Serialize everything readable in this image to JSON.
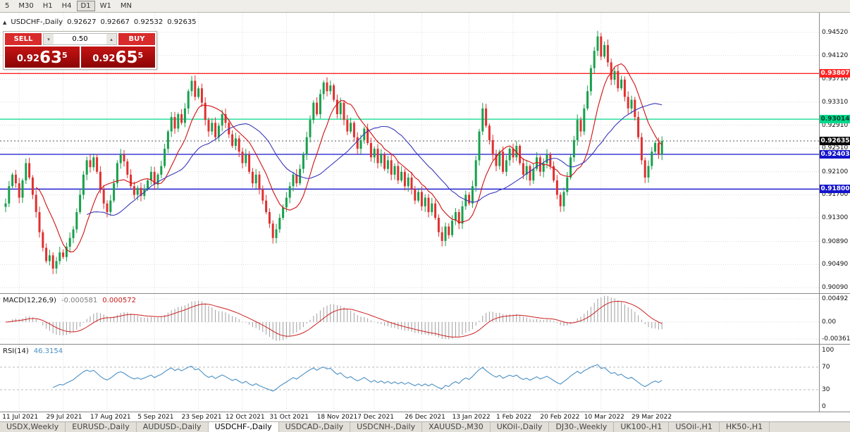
{
  "toolbar": {
    "timeframes": [
      "5",
      "M30",
      "H1",
      "H4",
      "D1",
      "W1",
      "MN"
    ],
    "active": "D1"
  },
  "chart": {
    "collapse_icon": "▲",
    "title": "USDCHF-,Daily",
    "open": "0.92627",
    "high": "0.92667",
    "low": "0.92532",
    "close": "0.92635"
  },
  "trade_panel": {
    "sell_label": "SELL",
    "buy_label": "BUY",
    "volume": "0.50",
    "spin_up_icon": "▴",
    "spin_down_icon": "▾",
    "sell_price": {
      "base": "0.92",
      "big": "63",
      "sup": "5"
    },
    "buy_price": {
      "base": "0.92",
      "big": "65",
      "sup": "5"
    }
  },
  "chart_data": {
    "type": "candlestick",
    "symbol": "USDCHF-",
    "timeframe": "Daily",
    "colors": {
      "up": "#18A04C",
      "down": "#E03030",
      "ma_fast": "#D01010",
      "ma_slow": "#3A3AB8",
      "macd_hist": "#9E9E9E",
      "macd_signal": "#CC2020",
      "rsi": "#4A90C4",
      "grid": "#DCDCDC"
    },
    "y_ticks": [
      "0.94520",
      "0.94120",
      "0.93710",
      "0.93310",
      "0.92910",
      "0.92510",
      "0.92100",
      "0.91700",
      "0.91300",
      "0.90890",
      "0.90490",
      "0.90090"
    ],
    "levels": [
      {
        "price": 0.93807,
        "label": "0.93807",
        "color": "#FF2424",
        "tag_text": "#FFFFFF"
      },
      {
        "price": 0.93014,
        "label": "0.93014",
        "color": "#00D98B",
        "tag_text": "#063A28"
      },
      {
        "price": 0.92403,
        "label": "0.92403",
        "color": "#1414CC",
        "tag_text": "#FFFFFF"
      },
      {
        "price": 0.918,
        "label": "0.91800",
        "color": "#1414CC",
        "tag_text": "#FFFFFF"
      }
    ],
    "current_price": {
      "value": 0.92635,
      "label": "0.92635",
      "bg": "#0A0A0A",
      "text": "#FFFFFF"
    },
    "x_labels": [
      {
        "i": 4,
        "text": "11 Jul 2021"
      },
      {
        "i": 17,
        "text": "29 Jul 2021"
      },
      {
        "i": 30,
        "text": "17 Aug 2021"
      },
      {
        "i": 44,
        "text": "5 Sep 2021"
      },
      {
        "i": 57,
        "text": "23 Sep 2021"
      },
      {
        "i": 70,
        "text": "12 Oct 2021"
      },
      {
        "i": 83,
        "text": "31 Oct 2021"
      },
      {
        "i": 97,
        "text": "18 Nov 2021"
      },
      {
        "i": 109,
        "text": "7 Dec 2021"
      },
      {
        "i": 123,
        "text": "26 Dec 2021"
      },
      {
        "i": 137,
        "text": "13 Jan 2022"
      },
      {
        "i": 150,
        "text": "1 Feb 2022"
      },
      {
        "i": 163,
        "text": "20 Feb 2022"
      },
      {
        "i": 176,
        "text": "10 Mar 2022"
      },
      {
        "i": 190,
        "text": "29 Mar 2022"
      }
    ],
    "closes": [
      0.9155,
      0.9185,
      0.9205,
      0.919,
      0.9165,
      0.9195,
      0.9225,
      0.92,
      0.917,
      0.914,
      0.9105,
      0.9078,
      0.9055,
      0.9065,
      0.9042,
      0.9055,
      0.907,
      0.9062,
      0.908,
      0.9095,
      0.911,
      0.914,
      0.917,
      0.9205,
      0.923,
      0.9218,
      0.9235,
      0.921,
      0.918,
      0.9155,
      0.914,
      0.916,
      0.919,
      0.9225,
      0.924,
      0.9228,
      0.9205,
      0.9185,
      0.917,
      0.9182,
      0.9168,
      0.918,
      0.9195,
      0.921,
      0.9188,
      0.9205,
      0.922,
      0.925,
      0.928,
      0.9305,
      0.9285,
      0.931,
      0.9295,
      0.932,
      0.935,
      0.9368,
      0.934,
      0.9355,
      0.933,
      0.93,
      0.928,
      0.9295,
      0.927,
      0.929,
      0.931,
      0.9295,
      0.9275,
      0.9255,
      0.9268,
      0.9245,
      0.9225,
      0.924,
      0.921,
      0.919,
      0.9205,
      0.918,
      0.916,
      0.914,
      0.912,
      0.9095,
      0.911,
      0.913,
      0.9148,
      0.9165,
      0.9185,
      0.9205,
      0.919,
      0.9215,
      0.924,
      0.927,
      0.93,
      0.933,
      0.931,
      0.9345,
      0.9365,
      0.935,
      0.936,
      0.9335,
      0.931,
      0.933,
      0.93,
      0.928,
      0.9295,
      0.927,
      0.925,
      0.9265,
      0.9285,
      0.926,
      0.9235,
      0.925,
      0.9225,
      0.924,
      0.9215,
      0.923,
      0.9205,
      0.922,
      0.9195,
      0.921,
      0.9185,
      0.92,
      0.918,
      0.916,
      0.9175,
      0.915,
      0.9165,
      0.914,
      0.9155,
      0.913,
      0.9105,
      0.909,
      0.9115,
      0.91,
      0.9125,
      0.914,
      0.912,
      0.915,
      0.917,
      0.9155,
      0.9185,
      0.923,
      0.928,
      0.932,
      0.929,
      0.9265,
      0.924,
      0.922,
      0.9245,
      0.921,
      0.923,
      0.925,
      0.9235,
      0.9255,
      0.9225,
      0.9205,
      0.922,
      0.9195,
      0.9215,
      0.9235,
      0.921,
      0.9225,
      0.924,
      0.922,
      0.9195,
      0.917,
      0.915,
      0.9175,
      0.92,
      0.9235,
      0.9265,
      0.93,
      0.928,
      0.932,
      0.935,
      0.939,
      0.942,
      0.9445,
      0.941,
      0.943,
      0.94,
      0.937,
      0.9385,
      0.9355,
      0.937,
      0.934,
      0.932,
      0.9335,
      0.9305,
      0.927,
      0.923,
      0.92,
      0.922,
      0.9245,
      0.926,
      0.924,
      0.92635
    ],
    "indicators": {
      "macd": {
        "name": "MACD(12,26,9)",
        "value1": "-0.000581",
        "value2": "0.000572",
        "scale_labels": [
          "0.00492",
          "0.00",
          "-0.00361"
        ]
      },
      "rsi": {
        "name": "RSI(14)",
        "value": "46.3154",
        "scale_labels": [
          "100",
          "70",
          "30",
          "0"
        ],
        "levels": [
          70,
          30
        ]
      }
    }
  },
  "tabs": [
    {
      "label": "USDX,Weekly",
      "active": false
    },
    {
      "label": "EURUSD-,Daily",
      "active": false
    },
    {
      "label": "AUDUSD-,Daily",
      "active": false
    },
    {
      "label": "USDCHF-,Daily",
      "active": true
    },
    {
      "label": "USDCAD-,Daily",
      "active": false
    },
    {
      "label": "USDCNH-,Daily",
      "active": false
    },
    {
      "label": "XAUUSD-,M30",
      "active": false
    },
    {
      "label": "UKOil-,Daily",
      "active": false
    },
    {
      "label": "DJ30-,Weekly",
      "active": false
    },
    {
      "label": "UK100-,H1",
      "active": false
    },
    {
      "label": "USOil-,H1",
      "active": false
    },
    {
      "label": "HK50-,H1",
      "active": false
    }
  ]
}
